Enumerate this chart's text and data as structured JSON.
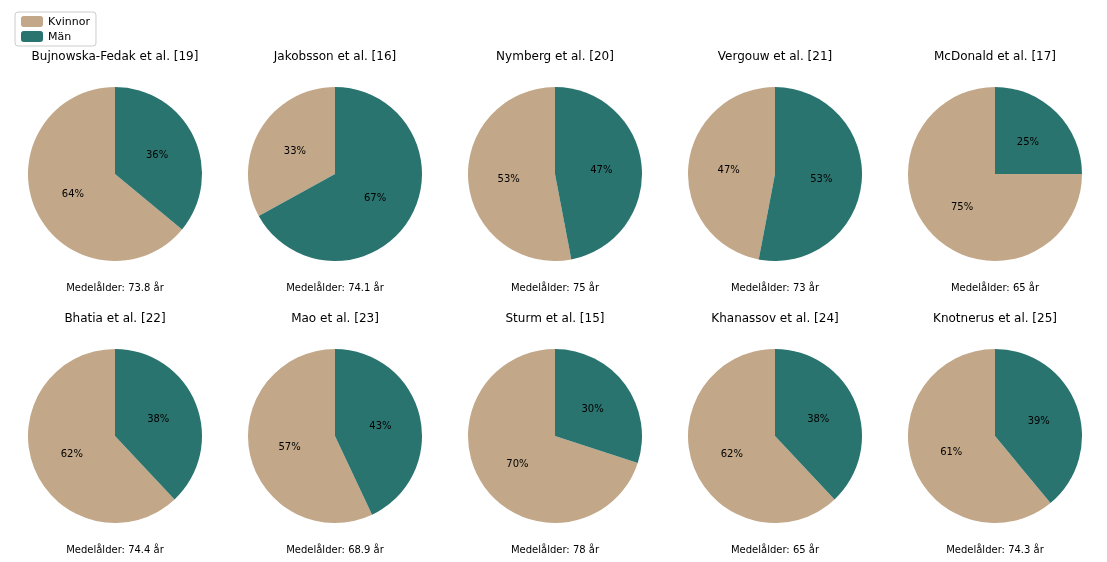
{
  "chart_data": [
    {
      "type": "pie",
      "title": "Bujnowska-Fedak et al. [19]",
      "categories": [
        "Kvinnor",
        "Män"
      ],
      "values": [
        64,
        36
      ],
      "value_labels": [
        "64%",
        "36%"
      ],
      "colors": [
        "#c2a788",
        "#2a7470"
      ],
      "annotations": [
        "Medelålder: 73.8 år"
      ],
      "legend": "top left"
    },
    {
      "type": "pie",
      "title": "Jakobsson et al. [16]",
      "categories": [
        null,
        null
      ],
      "values": [
        33,
        67
      ],
      "value_labels": [
        "33%",
        "67%"
      ],
      "colors": [
        "#c2a788",
        "#2a7470"
      ],
      "annotations": [
        "Medelålder: 74.1 år"
      ]
    },
    {
      "type": "pie",
      "title": "Nymberg et al. [20]",
      "categories": [
        null,
        null
      ],
      "values": [
        53,
        47
      ],
      "value_labels": [
        "53%",
        "47%"
      ],
      "colors": [
        "#c2a788",
        "#2a7470"
      ],
      "annotations": [
        "Medelålder: 75 år"
      ]
    },
    {
      "type": "pie",
      "title": "Vergouw et al. [21]",
      "categories": [
        null,
        null
      ],
      "values": [
        47,
        53
      ],
      "value_labels": [
        "47%",
        "53%"
      ],
      "colors": [
        "#c2a788",
        "#2a7470"
      ],
      "annotations": [
        "Medelålder: 73 år"
      ]
    },
    {
      "type": "pie",
      "title": "McDonald et al. [17]",
      "categories": [
        null,
        null
      ],
      "values": [
        75,
        25
      ],
      "value_labels": [
        "75%",
        "25%"
      ],
      "colors": [
        "#c2a788",
        "#2a7470"
      ],
      "annotations": [
        "Medelålder: 65 år"
      ]
    },
    {
      "type": "pie",
      "title": "Bhatia et al. [22]",
      "categories": [
        null,
        null
      ],
      "values": [
        62,
        38
      ],
      "value_labels": [
        "62%",
        "38%"
      ],
      "colors": [
        "#c2a788",
        "#2a7470"
      ],
      "annotations": [
        "Medelålder: 74.4 år"
      ]
    },
    {
      "type": "pie",
      "title": "Mao et al. [23]",
      "categories": [
        null,
        null
      ],
      "values": [
        57,
        43
      ],
      "value_labels": [
        "57%",
        "43%"
      ],
      "colors": [
        "#c2a788",
        "#2a7470"
      ],
      "annotations": [
        "Medelålder: 68.9 år"
      ]
    },
    {
      "type": "pie",
      "title": "Sturm et al. [15]",
      "categories": [
        null,
        null
      ],
      "values": [
        70,
        30
      ],
      "value_labels": [
        "70%",
        "30%"
      ],
      "colors": [
        "#c2a788",
        "#2a7470"
      ],
      "annotations": [
        "Medelålder: 78 år"
      ]
    },
    {
      "type": "pie",
      "title": "Khanassov et al. [24]",
      "categories": [
        null,
        null
      ],
      "values": [
        62,
        38
      ],
      "value_labels": [
        "62%",
        "38%"
      ],
      "colors": [
        "#c2a788",
        "#2a7470"
      ],
      "annotations": [
        "Medelålder: 65 år"
      ]
    },
    {
      "type": "pie",
      "title": "Knotnerus et al. [25]",
      "categories": [
        null,
        null
      ],
      "values": [
        61,
        39
      ],
      "value_labels": [
        "61%",
        "39%"
      ],
      "colors": [
        "#c2a788",
        "#2a7470"
      ],
      "annotations": [
        "Medelålder: 74.3 år"
      ]
    }
  ]
}
